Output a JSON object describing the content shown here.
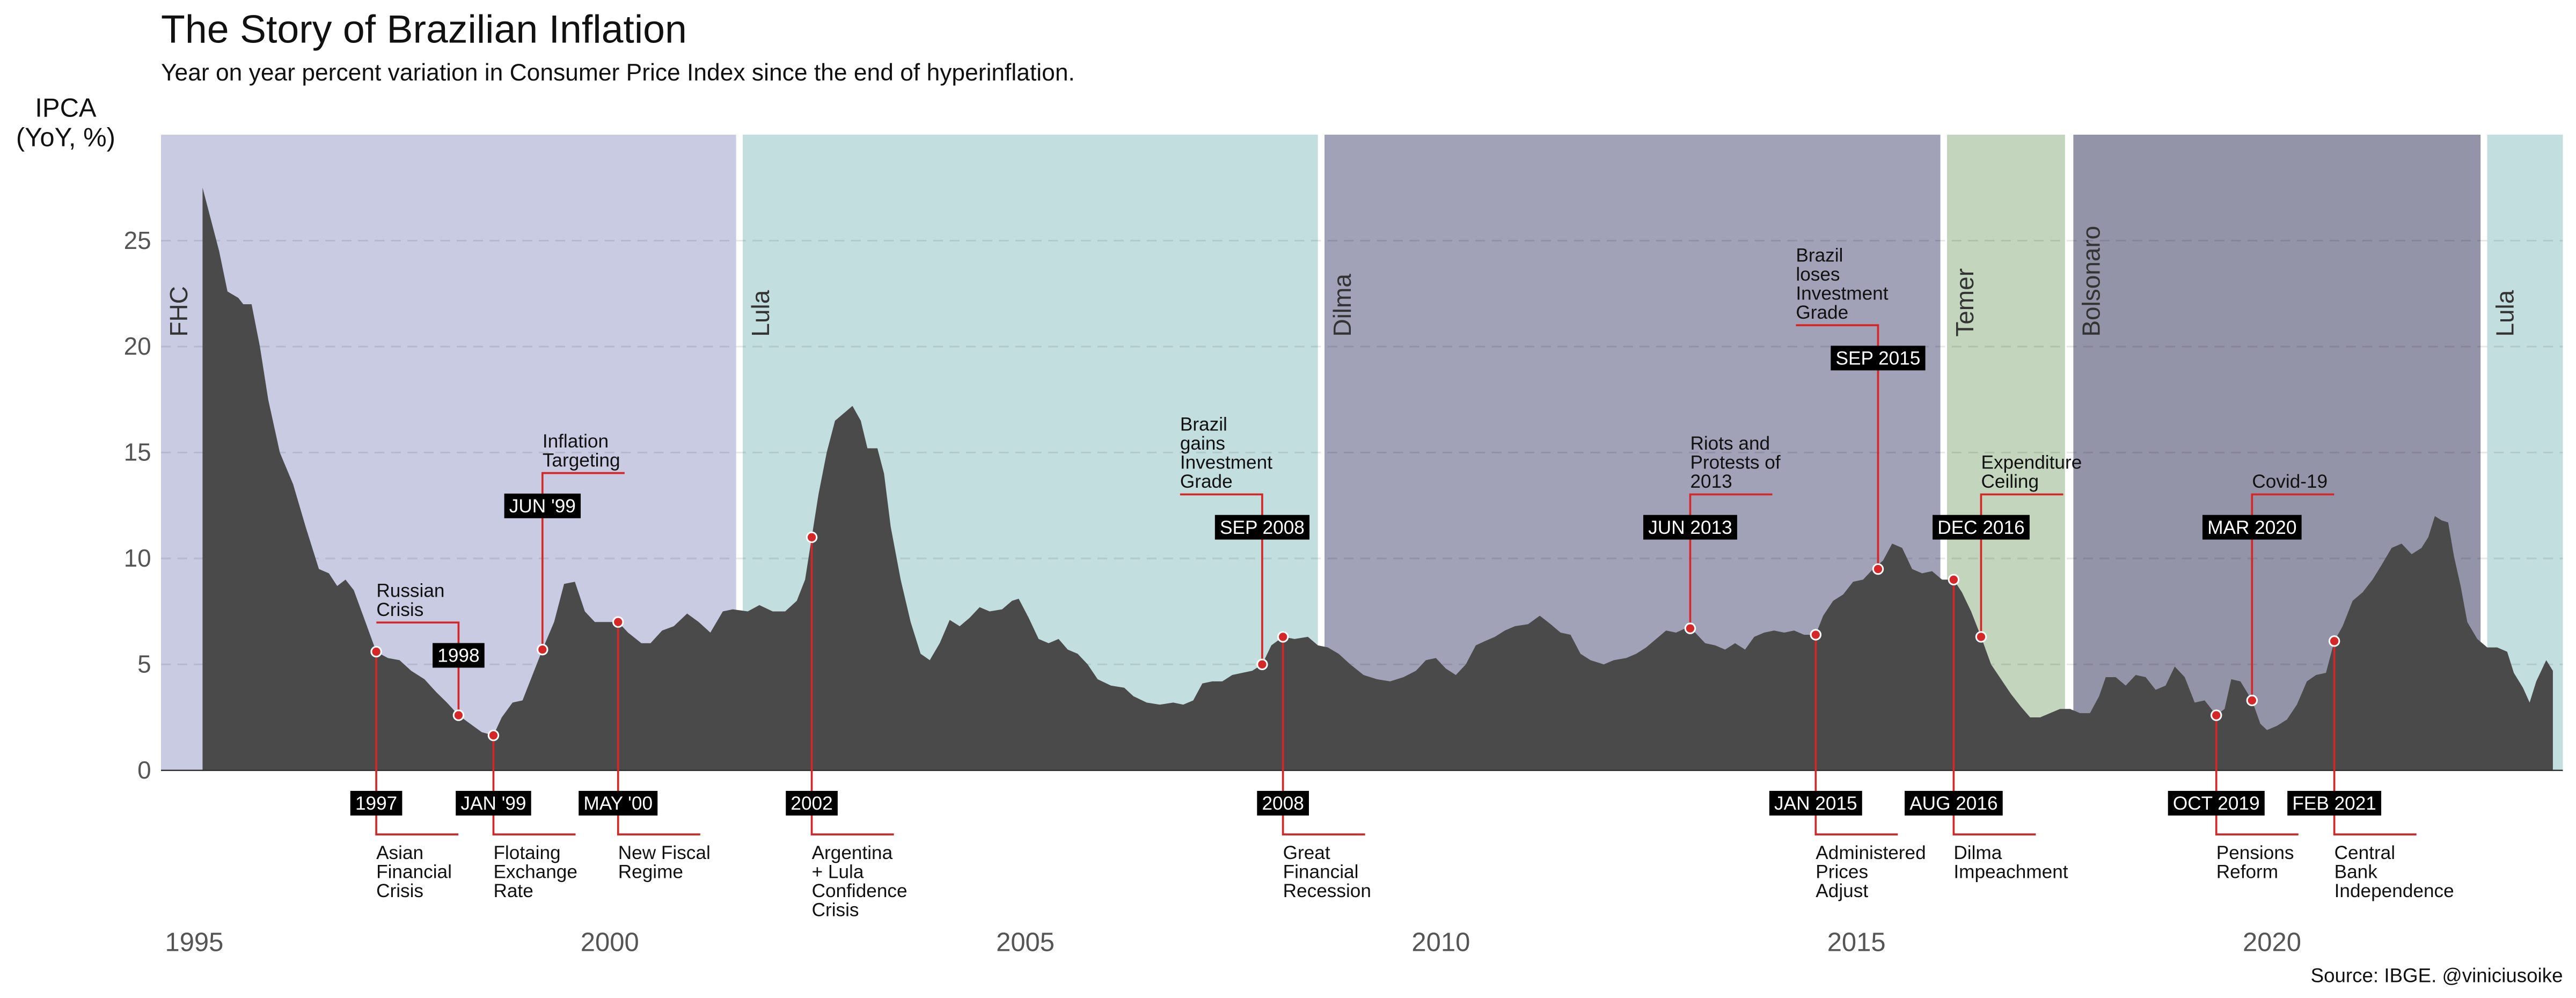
{
  "chart_data": {
    "type": "area",
    "title": "The Story of Brazilian Inflation",
    "subtitle": "Year on year percent variation in Consumer Price Index since the end of hyperinflation.",
    "y_label": [
      "IPCA",
      "(YoY, %)"
    ],
    "source": "Source: IBGE. @viniciusoike",
    "color": "#4a4a4a",
    "xlim": [
      1994.6,
      2023.5
    ],
    "xticks": [
      1995,
      2000,
      2005,
      2010,
      2015,
      2020
    ],
    "ylim": [
      0,
      30
    ],
    "yticks": [
      0,
      5,
      10,
      15,
      20,
      25
    ],
    "grid": true,
    "periods": [
      {
        "name": "FHC",
        "start": 1994.6,
        "end": 2001.52,
        "color": "#c9cbe3"
      },
      {
        "name": "Lula",
        "start": 2001.6,
        "end": 2008.52,
        "color": "#c3dedf"
      },
      {
        "name": "Dilma",
        "start": 2008.6,
        "end": 2016.01,
        "color": "#a1a1b8"
      },
      {
        "name": "Temer",
        "start": 2016.09,
        "end": 2017.51,
        "color": "#c3d6bd"
      },
      {
        "name": "Bolsonaro",
        "start": 2017.61,
        "end": 2022.51,
        "color": "#9494a8"
      },
      {
        "name": "Lula",
        "start": 2022.59,
        "end": 2023.5,
        "color": "#c3dedf"
      }
    ],
    "x": [
      1995.1,
      1995.2,
      1995.3,
      1995.4,
      1995.53,
      1995.59,
      1995.69,
      1995.79,
      1995.89,
      1996.03,
      1996.19,
      1996.34,
      1996.5,
      1996.62,
      1996.72,
      1996.82,
      1996.92,
      1997.06,
      1997.19,
      1997.33,
      1997.47,
      1997.61,
      1997.77,
      1997.91,
      1998.04,
      1998.18,
      1998.32,
      1998.46,
      1998.6,
      1998.7,
      1998.83,
      1998.95,
      1999.07,
      1999.19,
      1999.33,
      1999.45,
      1999.58,
      1999.7,
      1999.82,
      1999.98,
      2000.1,
      2000.22,
      2000.38,
      2000.49,
      2000.63,
      2000.77,
      2000.93,
      2001.07,
      2001.21,
      2001.36,
      2001.48,
      2001.66,
      2001.8,
      2001.96,
      2002.11,
      2002.25,
      2002.35,
      2002.43,
      2002.51,
      2002.61,
      2002.71,
      2002.83,
      2002.92,
      2003.02,
      2003.1,
      2003.22,
      2003.3,
      2003.38,
      2003.5,
      2003.62,
      2003.74,
      2003.85,
      2003.97,
      2004.09,
      2004.21,
      2004.33,
      2004.45,
      2004.57,
      2004.72,
      2004.84,
      2004.92,
      2005.04,
      2005.16,
      2005.28,
      2005.4,
      2005.51,
      2005.63,
      2005.75,
      2005.87,
      2006.03,
      2006.19,
      2006.3,
      2006.46,
      2006.62,
      2006.78,
      2006.9,
      2007.02,
      2007.13,
      2007.25,
      2007.37,
      2007.49,
      2007.61,
      2007.73,
      2007.85,
      2007.96,
      2008.1,
      2008.24,
      2008.4,
      2008.52,
      2008.64,
      2008.77,
      2008.91,
      2009.07,
      2009.23,
      2009.39,
      2009.55,
      2009.7,
      2009.82,
      2009.94,
      2010.06,
      2010.18,
      2010.3,
      2010.42,
      2010.53,
      2010.65,
      2010.77,
      2010.89,
      2011.05,
      2011.19,
      2011.32,
      2011.44,
      2011.56,
      2011.68,
      2011.8,
      2011.96,
      2012.08,
      2012.23,
      2012.35,
      2012.47,
      2012.59,
      2012.71,
      2012.83,
      2012.94,
      2013.06,
      2013.18,
      2013.3,
      2013.42,
      2013.54,
      2013.66,
      2013.77,
      2013.89,
      2014.01,
      2014.13,
      2014.25,
      2014.37,
      2014.51,
      2014.6,
      2014.72,
      2014.84,
      2014.96,
      2015.08,
      2015.2,
      2015.32,
      2015.43,
      2015.55,
      2015.67,
      2015.79,
      2015.91,
      2016.03,
      2016.17,
      2016.27,
      2016.38,
      2016.5,
      2016.62,
      2016.74,
      2016.86,
      2016.98,
      2017.09,
      2017.21,
      2017.33,
      2017.45,
      2017.57,
      2017.69,
      2017.81,
      2017.92,
      2018.0,
      2018.12,
      2018.24,
      2018.36,
      2018.48,
      2018.6,
      2018.72,
      2018.83,
      2018.95,
      2019.07,
      2019.19,
      2019.33,
      2019.43,
      2019.51,
      2019.62,
      2019.76,
      2019.86,
      2019.94,
      2020.06,
      2020.18,
      2020.3,
      2020.42,
      2020.53,
      2020.65,
      2020.75,
      2020.85,
      2020.97,
      2021.09,
      2021.21,
      2021.32,
      2021.44,
      2021.56,
      2021.68,
      2021.8,
      2021.88,
      2021.96,
      2022.04,
      2022.12,
      2022.19,
      2022.27,
      2022.35,
      2022.47,
      2022.59,
      2022.71,
      2022.83,
      2022.91,
      2023.02,
      2023.1,
      2023.18,
      2023.3,
      2023.38
    ],
    "values": [
      27.5,
      26,
      24.5,
      22.6,
      22.3,
      22,
      22,
      20,
      17.5,
      15,
      13.5,
      11.5,
      9.5,
      9.3,
      8.7,
      9,
      8.5,
      7,
      5.6,
      5.3,
      5.2,
      4.7,
      4.3,
      3.7,
      3.2,
      2.6,
      2.2,
      1.8,
      1.65,
      2.5,
      3.2,
      3.3,
      4.5,
      5.7,
      7,
      8.8,
      8.9,
      7.5,
      7,
      7,
      7,
      6.5,
      6,
      6,
      6.6,
      6.8,
      7.4,
      7,
      6.5,
      7.5,
      7.6,
      7.5,
      7.8,
      7.5,
      7.5,
      8,
      9,
      11,
      13,
      15,
      16.5,
      16.9,
      17.2,
      16.5,
      15.2,
      15.2,
      14,
      11.5,
      9,
      7,
      5.5,
      5.2,
      6,
      7.1,
      6.8,
      7.2,
      7.7,
      7.5,
      7.6,
      8,
      8.1,
      7.2,
      6.2,
      6,
      6.2,
      5.7,
      5.5,
      5,
      4.3,
      4,
      3.9,
      3.5,
      3.2,
      3.1,
      3.2,
      3.1,
      3.3,
      4.1,
      4.2,
      4.2,
      4.5,
      4.6,
      4.7,
      5,
      5.9,
      6.3,
      6.2,
      6.3,
      5.9,
      5.8,
      5.5,
      5,
      4.5,
      4.3,
      4.2,
      4.4,
      4.7,
      5.2,
      5.3,
      4.8,
      4.5,
      5,
      5.9,
      6.1,
      6.3,
      6.6,
      6.8,
      6.9,
      7.3,
      6.9,
      6.5,
      6.4,
      5.5,
      5.2,
      5,
      5.2,
      5.3,
      5.5,
      5.8,
      6.2,
      6.6,
      6.5,
      6.7,
      6.5,
      6,
      5.9,
      5.7,
      6,
      5.7,
      6.3,
      6.5,
      6.6,
      6.5,
      6.6,
      6.4,
      6.4,
      7.3,
      8,
      8.3,
      8.9,
      9,
      9.5,
      9.9,
      10.7,
      10.5,
      9.5,
      9.3,
      9.4,
      9,
      9,
      8.4,
      7.5,
      6.3,
      5,
      4.3,
      3.6,
      3,
      2.5,
      2.5,
      2.7,
      2.9,
      2.9,
      2.7,
      2.7,
      3.5,
      4.4,
      4.4,
      4,
      4.5,
      4.4,
      3.8,
      4,
      4.9,
      4.4,
      3.2,
      3.3,
      2.6,
      2.9,
      4.3,
      4.2,
      3.3,
      2.2,
      1.9,
      2.1,
      2.4,
      3.1,
      4.2,
      4.5,
      4.6,
      6.1,
      6.8,
      8,
      8.4,
      9,
      9.7,
      10.5,
      10.7,
      10.2,
      10.5,
      11,
      12,
      11.8,
      11.7,
      10.1,
      8.7,
      7,
      6.2,
      5.8,
      5.8,
      5.6,
      4.6,
      3.9,
      3.2,
      4.2,
      5.2,
      4.7
    ],
    "annotations": [
      {
        "label": "1997",
        "lines": [
          "Asian",
          "Financial",
          "Crisis"
        ],
        "x": 1997.19,
        "y": 5.6
      },
      {
        "label": "1998",
        "lines": [
          "Russian",
          "Crisis"
        ],
        "x": 1998.18,
        "y": 2.6
      },
      {
        "label": "JAN '99",
        "lines": [
          "Flotaing",
          "Exchange",
          "Rate"
        ],
        "x": 1998.6,
        "y": 1.65
      },
      {
        "label": "JUN '99",
        "lines": [
          "Inflation",
          "Targeting"
        ],
        "x": 1999.19,
        "y": 5.7
      },
      {
        "label": "MAY '00",
        "lines": [
          "New Fiscal",
          "Regime"
        ],
        "x": 2000.1,
        "y": 7.0
      },
      {
        "label": "2002",
        "lines": [
          "Argentina",
          "+ Lula",
          "Confidence",
          "Crisis"
        ],
        "x": 2002.43,
        "y": 11.0
      },
      {
        "label": "SEP 2008",
        "lines": [
          "Brazil",
          "gains",
          "Investment",
          "Grade"
        ],
        "x": 2007.85,
        "y": 5.0
      },
      {
        "label": "2008",
        "lines": [
          "Great",
          "Financial",
          "Recession"
        ],
        "x": 2008.1,
        "y": 6.3
      },
      {
        "label": "JUN 2013",
        "lines": [
          "Riots and",
          "Protests of",
          "2013"
        ],
        "x": 2013.0,
        "y": 6.7
      },
      {
        "label": "JAN 2015",
        "lines": [
          "Administered",
          "Prices",
          "Adjust"
        ],
        "x": 2014.51,
        "y": 6.4
      },
      {
        "label": "SEP 2015",
        "lines": [
          "Brazil",
          "loses",
          "Investment",
          "Grade"
        ],
        "x": 2015.26,
        "y": 9.5
      },
      {
        "label": "AUG 2016",
        "lines": [
          "Dilma",
          "Impeachment"
        ],
        "x": 2016.17,
        "y": 9.0
      },
      {
        "label": "DEC 2016",
        "lines": [
          "Expenditure",
          "Ceiling"
        ],
        "x": 2016.5,
        "y": 6.3
      },
      {
        "label": "OCT 2019",
        "lines": [
          "Pensions",
          "Reform"
        ],
        "x": 2019.33,
        "y": 2.6
      },
      {
        "label": "MAR 2020",
        "lines": [
          "Covid-19"
        ],
        "x": 2019.76,
        "y": 3.3
      },
      {
        "label": "FEB 2021",
        "lines": [
          "Central",
          "Bank",
          "Independence"
        ],
        "x": 2020.75,
        "y": 6.1
      }
    ]
  }
}
